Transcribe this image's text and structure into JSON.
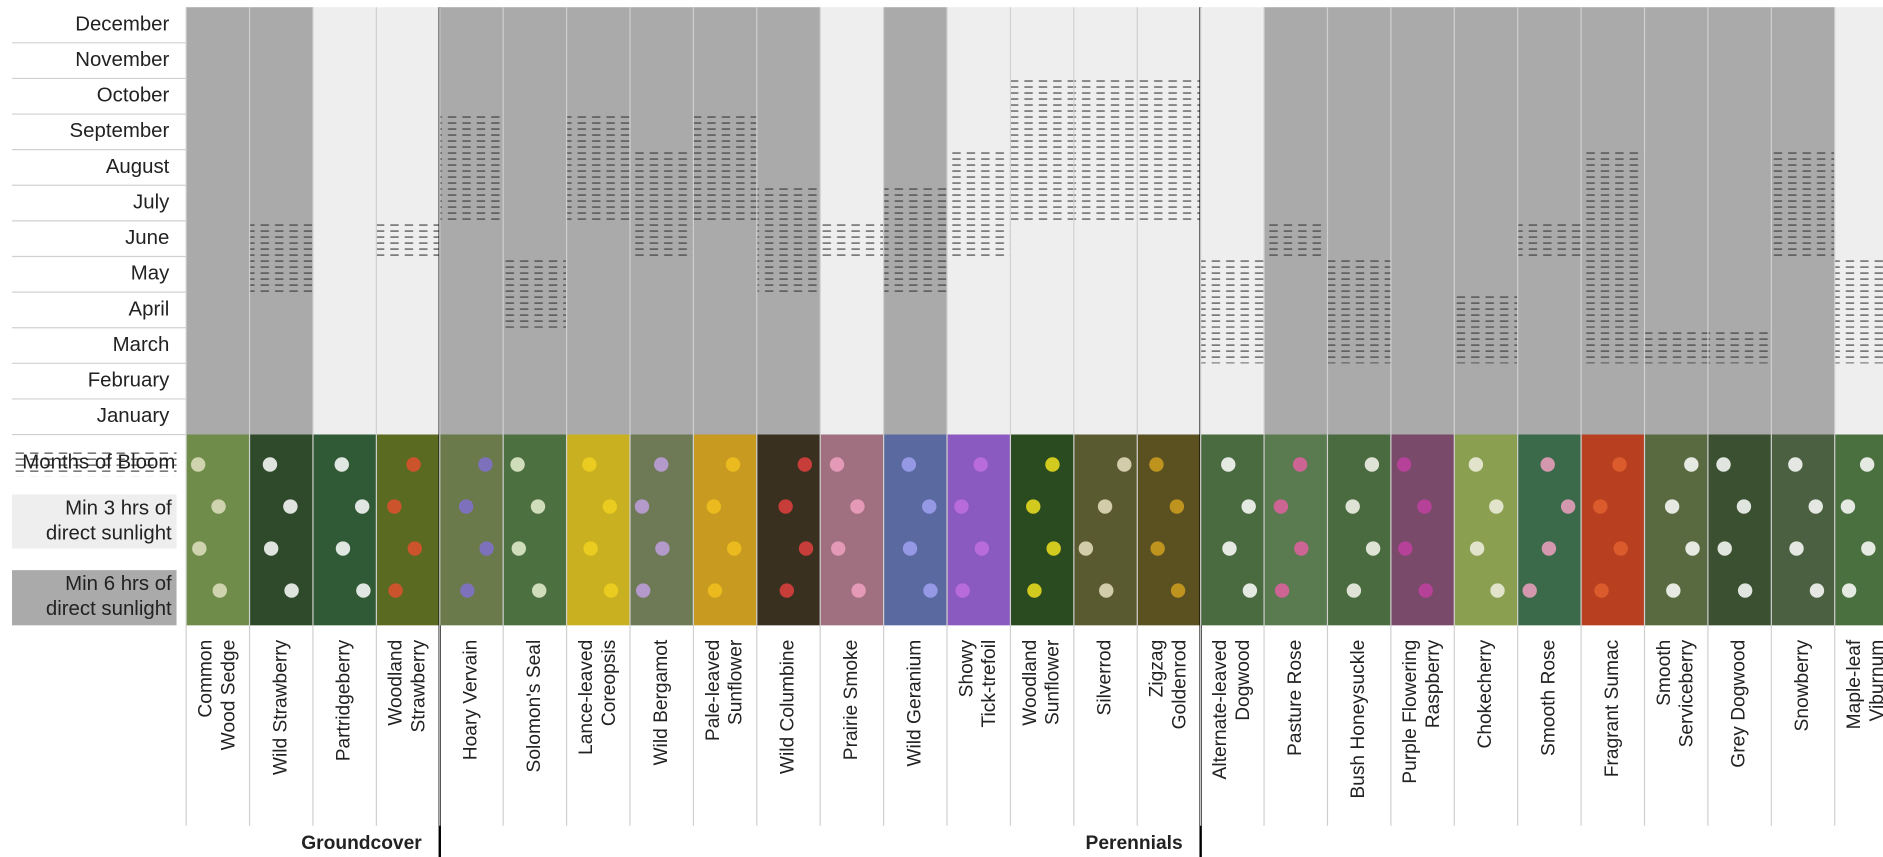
{
  "months": [
    "December",
    "November",
    "October",
    "September",
    "August",
    "July",
    "June",
    "May",
    "April",
    "March",
    "February",
    "January"
  ],
  "legend": [
    {
      "lines": [
        "Months of Bloom"
      ]
    },
    {
      "hours": 3,
      "lines": [
        "Min 3 hrs of",
        "direct sunlight"
      ]
    },
    {
      "hours": 6,
      "lines": [
        "Min 6 hrs of",
        "direct sunlight"
      ]
    }
  ],
  "groups": [
    {
      "name": "Groundcover",
      "plants": [
        {
          "lines": [
            "Common",
            "Wood Sedge"
          ],
          "sunlight_hours": 6,
          "bloom": []
        },
        {
          "lines": [
            "Wild Strawberry"
          ],
          "sunlight_hours": 6,
          "bloom": [
            "June",
            "May"
          ]
        },
        {
          "lines": [
            "Partridgeberry"
          ],
          "sunlight_hours": 3,
          "bloom": []
        },
        {
          "lines": [
            "Woodland",
            "Strawberry"
          ],
          "sunlight_hours": 3,
          "bloom": [
            "June"
          ]
        }
      ]
    },
    {
      "name": "Perennials",
      "plants": [
        {
          "lines": [
            "Hoary Vervain"
          ],
          "sunlight_hours": 6,
          "bloom": [
            "September",
            "August",
            "July"
          ]
        },
        {
          "lines": [
            "Solomon's Seal"
          ],
          "sunlight_hours": 6,
          "bloom": [
            "May",
            "April"
          ]
        },
        {
          "lines": [
            "Lance-leaved",
            "Coreopsis"
          ],
          "sunlight_hours": 6,
          "bloom": [
            "September",
            "August",
            "July"
          ]
        },
        {
          "lines": [
            "Wild Bergamot"
          ],
          "sunlight_hours": 6,
          "bloom": [
            "August",
            "July",
            "June"
          ]
        },
        {
          "lines": [
            "Pale-leaved",
            "Sunflower"
          ],
          "sunlight_hours": 6,
          "bloom": [
            "September",
            "August",
            "July"
          ]
        },
        {
          "lines": [
            "Wild Columbine"
          ],
          "sunlight_hours": 6,
          "bloom": [
            "July",
            "June",
            "May"
          ]
        },
        {
          "lines": [
            "Prairie Smoke"
          ],
          "sunlight_hours": 3,
          "bloom": [
            "June"
          ]
        },
        {
          "lines": [
            "Wild Geranium"
          ],
          "sunlight_hours": 6,
          "bloom": [
            "July",
            "June",
            "May"
          ]
        },
        {
          "lines": [
            "Showy",
            "Tick-trefoil"
          ],
          "sunlight_hours": 3,
          "bloom": [
            "August",
            "July",
            "June"
          ]
        },
        {
          "lines": [
            "Woodland",
            "Sunflower"
          ],
          "sunlight_hours": 3,
          "bloom": [
            "October",
            "September",
            "August",
            "July"
          ]
        },
        {
          "lines": [
            "Silverrod"
          ],
          "sunlight_hours": 3,
          "bloom": [
            "October",
            "September",
            "August",
            "July"
          ]
        },
        {
          "lines": [
            "Zigzag",
            "Goldenrod"
          ],
          "sunlight_hours": 3,
          "bloom": [
            "October",
            "September",
            "August",
            "July"
          ]
        }
      ]
    },
    {
      "plants": [
        {
          "lines": [
            "Alternate-leaved",
            "Dogwood"
          ],
          "sunlight_hours": 3,
          "bloom": [
            "May",
            "April",
            "March"
          ]
        },
        {
          "lines": [
            "Pasture Rose"
          ],
          "sunlight_hours": 6,
          "bloom": [
            "June"
          ]
        },
        {
          "lines": [
            "Bush Honeysuckle"
          ],
          "sunlight_hours": 6,
          "bloom": [
            "May",
            "April",
            "March"
          ]
        },
        {
          "lines": [
            "Purple Flowering",
            "Raspberry"
          ],
          "sunlight_hours": 6,
          "bloom": []
        },
        {
          "lines": [
            "Chokecherry"
          ],
          "sunlight_hours": 6,
          "bloom": [
            "April",
            "March"
          ]
        },
        {
          "lines": [
            "Smooth Rose"
          ],
          "sunlight_hours": 6,
          "bloom": [
            "June"
          ]
        },
        {
          "lines": [
            "Fragrant Sumac"
          ],
          "sunlight_hours": 6,
          "bloom": [
            "August",
            "July",
            "June",
            "May",
            "April",
            "March"
          ]
        },
        {
          "lines": [
            "Smooth",
            "Serviceberry"
          ],
          "sunlight_hours": 6,
          "bloom": [
            "March"
          ]
        },
        {
          "lines": [
            "Grey Dogwood"
          ],
          "sunlight_hours": 6,
          "bloom": [
            "March"
          ]
        },
        {
          "lines": [
            "Snowberry"
          ],
          "sunlight_hours": 6,
          "bloom": [
            "August",
            "July",
            "June"
          ]
        },
        {
          "lines": [
            "Maple-leaf",
            "Viburnum"
          ],
          "sunlight_hours": 3,
          "bloom": [
            "May",
            "April",
            "March"
          ]
        }
      ]
    }
  ]
}
